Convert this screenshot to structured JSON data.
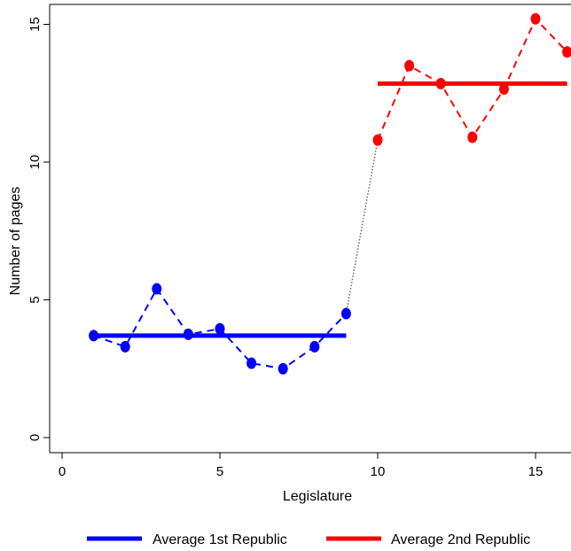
{
  "chart_data": {
    "type": "line",
    "xlabel": "Legislature",
    "ylabel": "Number of pages",
    "xlim": [
      0,
      16
    ],
    "ylim": [
      0,
      15
    ],
    "x_ticks": [
      0,
      5,
      10,
      15
    ],
    "y_ticks": [
      0,
      5,
      10,
      15
    ],
    "grid": false,
    "series": [
      {
        "group": "1st Republic",
        "x": [
          1,
          2,
          3,
          4,
          5,
          6,
          7,
          8,
          9
        ],
        "values": [
          3.7,
          3.3,
          5.4,
          3.75,
          3.95,
          2.7,
          2.5,
          3.3,
          4.5
        ],
        "color": "#0000ff",
        "style": "dashed-markers"
      },
      {
        "group": "2nd Republic",
        "x": [
          10,
          11,
          12,
          13,
          14,
          15,
          16
        ],
        "values": [
          10.8,
          13.5,
          12.85,
          10.9,
          12.65,
          15.2,
          14.0
        ],
        "color": "#ff0000",
        "style": "dashed-markers"
      }
    ],
    "connector": {
      "x": [
        9,
        10
      ],
      "values": [
        4.5,
        10.8
      ],
      "color": "#555555",
      "style": "dotted"
    },
    "averages": [
      {
        "name": "Average 1st Republic",
        "x_range": [
          1,
          9
        ],
        "value": 3.7,
        "color": "#0000ff"
      },
      {
        "name": "Average 2nd Republic",
        "x_range": [
          10,
          16
        ],
        "value": 12.85,
        "color": "#ff0000"
      }
    ],
    "legend": {
      "position": "bottom",
      "items": [
        {
          "label": "Average 1st Republic",
          "color": "#0000ff"
        },
        {
          "label": "Average 2nd Republic",
          "color": "#ff0000"
        }
      ]
    }
  }
}
